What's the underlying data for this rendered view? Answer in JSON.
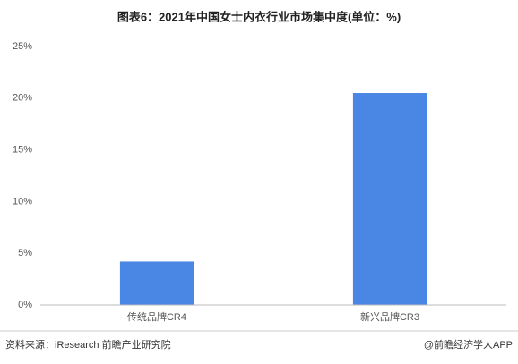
{
  "chart_data": {
    "type": "bar",
    "title": "图表6：2021年中国女士内衣行业市场集中度(单位：%)",
    "categories": [
      "传统品牌CR4",
      "新兴品牌CR3"
    ],
    "values": [
      4.2,
      20.5
    ],
    "color": "#4a86e4",
    "ylim": [
      0,
      25
    ],
    "yticks": [
      {
        "value": 0,
        "label": "0%"
      },
      {
        "value": 5,
        "label": "5%"
      },
      {
        "value": 10,
        "label": "10%"
      },
      {
        "value": 15,
        "label": "15%"
      },
      {
        "value": 20,
        "label": "20%"
      },
      {
        "value": 25,
        "label": "25%"
      }
    ],
    "grid": false,
    "source": "资料来源：iResearch 前瞻产业研究院",
    "credit": "@前瞻经济学人APP"
  }
}
